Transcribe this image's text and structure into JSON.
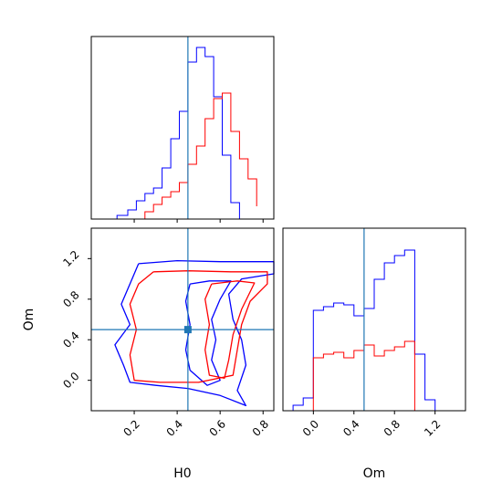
{
  "chart_data": [
    {
      "type": "histogram",
      "panel": "H0 marginal",
      "xlim": [
        0.0,
        0.85
      ],
      "ylim": [
        0,
        1
      ],
      "x_ticks": [
        "0.2",
        "0.4",
        "0.6",
        "0.8"
      ],
      "truth_x": 0.45,
      "series": [
        {
          "color": "#0000ff",
          "bin_edges": [
            0.12,
            0.17,
            0.21,
            0.25,
            0.29,
            0.33,
            0.37,
            0.41,
            0.45,
            0.49,
            0.53,
            0.57,
            0.61,
            0.65,
            0.69
          ],
          "values": [
            0.02,
            0.05,
            0.1,
            0.14,
            0.17,
            0.28,
            0.44,
            0.59,
            0.86,
            0.94,
            0.89,
            0.67,
            0.35,
            0.09
          ]
        },
        {
          "color": "#ff0000",
          "bin_edges": [
            0.25,
            0.29,
            0.33,
            0.37,
            0.41,
            0.45,
            0.49,
            0.53,
            0.57,
            0.61,
            0.65,
            0.69,
            0.73,
            0.77
          ],
          "values": [
            0.04,
            0.08,
            0.12,
            0.15,
            0.2,
            0.3,
            0.4,
            0.55,
            0.66,
            0.69,
            0.48,
            0.33,
            0.22,
            0.07
          ]
        }
      ]
    },
    {
      "type": "contour",
      "panel": "H0 vs Om",
      "xlabel": "H0",
      "ylabel": "Om",
      "xlim": [
        0.0,
        0.85
      ],
      "ylim": [
        -0.3,
        1.5
      ],
      "x_ticks": [
        "0.2",
        "0.4",
        "0.6",
        "0.8"
      ],
      "y_ticks": [
        "0.0",
        "0.4",
        "0.8",
        "1.2"
      ],
      "truth": {
        "H0": 0.45,
        "Om": 0.5
      },
      "series": [
        {
          "color": "#0000ff",
          "contours": [
            [
              [
                0.22,
                1.15
              ],
              [
                0.4,
                1.18
              ],
              [
                0.6,
                1.17
              ],
              [
                0.85,
                1.17
              ],
              [
                0.85,
                1.05
              ],
              [
                0.7,
                1.0
              ],
              [
                0.64,
                0.85
              ],
              [
                0.66,
                0.6
              ],
              [
                0.7,
                0.4
              ],
              [
                0.72,
                0.15
              ],
              [
                0.68,
                -0.1
              ],
              [
                0.72,
                -0.25
              ],
              [
                0.6,
                -0.15
              ],
              [
                0.45,
                -0.08
              ],
              [
                0.3,
                -0.05
              ],
              [
                0.18,
                -0.02
              ],
              [
                0.15,
                0.15
              ],
              [
                0.11,
                0.35
              ],
              [
                0.18,
                0.55
              ],
              [
                0.14,
                0.75
              ],
              [
                0.19,
                1.0
              ],
              [
                0.22,
                1.15
              ]
            ],
            [
              [
                0.46,
                0.95
              ],
              [
                0.55,
                0.98
              ],
              [
                0.65,
                0.98
              ],
              [
                0.6,
                0.8
              ],
              [
                0.56,
                0.6
              ],
              [
                0.58,
                0.4
              ],
              [
                0.56,
                0.2
              ],
              [
                0.6,
                0.0
              ],
              [
                0.54,
                -0.05
              ],
              [
                0.46,
                0.1
              ],
              [
                0.44,
                0.3
              ],
              [
                0.46,
                0.55
              ],
              [
                0.44,
                0.78
              ],
              [
                0.46,
                0.95
              ]
            ]
          ]
        },
        {
          "color": "#ff0000",
          "contours": [
            [
              [
                0.29,
                1.07
              ],
              [
                0.45,
                1.08
              ],
              [
                0.65,
                1.07
              ],
              [
                0.82,
                1.07
              ],
              [
                0.82,
                0.95
              ],
              [
                0.74,
                0.78
              ],
              [
                0.7,
                0.55
              ],
              [
                0.68,
                0.3
              ],
              [
                0.66,
                0.05
              ],
              [
                0.5,
                -0.02
              ],
              [
                0.32,
                -0.02
              ],
              [
                0.2,
                0.0
              ],
              [
                0.18,
                0.25
              ],
              [
                0.21,
                0.5
              ],
              [
                0.18,
                0.75
              ],
              [
                0.22,
                0.95
              ],
              [
                0.29,
                1.07
              ]
            ],
            [
              [
                0.56,
                0.95
              ],
              [
                0.68,
                0.98
              ],
              [
                0.76,
                0.96
              ],
              [
                0.7,
                0.7
              ],
              [
                0.66,
                0.45
              ],
              [
                0.64,
                0.2
              ],
              [
                0.62,
                0.02
              ],
              [
                0.55,
                0.05
              ],
              [
                0.53,
                0.3
              ],
              [
                0.55,
                0.55
              ],
              [
                0.53,
                0.8
              ],
              [
                0.56,
                0.95
              ]
            ]
          ]
        }
      ]
    },
    {
      "type": "histogram",
      "panel": "Om marginal",
      "xlabel": "Om",
      "xlim": [
        -0.3,
        1.5
      ],
      "ylim": [
        0,
        1
      ],
      "x_ticks": [
        "0.0",
        "0.4",
        "0.8",
        "1.2"
      ],
      "truth_x": 0.5,
      "series": [
        {
          "color": "#0000ff",
          "bin_edges": [
            -0.2,
            -0.1,
            0.0,
            0.1,
            0.2,
            0.3,
            0.4,
            0.5,
            0.6,
            0.7,
            0.8,
            0.9,
            1.0,
            1.1,
            1.2
          ],
          "values": [
            0.03,
            0.07,
            0.55,
            0.57,
            0.59,
            0.58,
            0.52,
            0.56,
            0.72,
            0.81,
            0.85,
            0.88,
            0.31,
            0.06
          ]
        },
        {
          "color": "#ff0000",
          "bin_edges": [
            0.0,
            0.1,
            0.2,
            0.3,
            0.4,
            0.5,
            0.6,
            0.7,
            0.8,
            0.9,
            1.0
          ],
          "values": [
            0.29,
            0.31,
            0.32,
            0.29,
            0.33,
            0.36,
            0.3,
            0.33,
            0.35,
            0.38
          ]
        }
      ]
    }
  ]
}
